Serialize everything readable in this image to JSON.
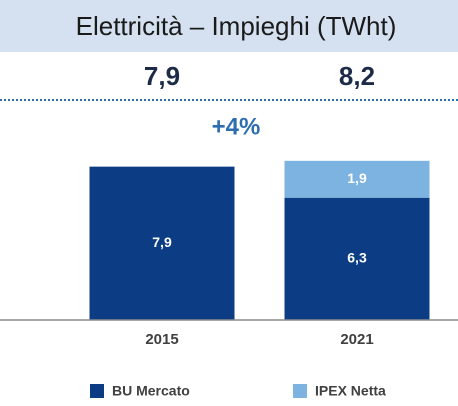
{
  "chart_data": {
    "type": "stacked_bar",
    "title": "Elettricità – Impieghi (TWht)",
    "annotation": "+4%",
    "categories": [
      "2015",
      "2021"
    ],
    "totals": [
      7.9,
      8.2
    ],
    "total_labels": [
      "7,9",
      "8,2"
    ],
    "series": [
      {
        "name": "BU Mercato",
        "color": "#0c3d84",
        "values": [
          7.9,
          6.3
        ],
        "value_labels": [
          "7,9",
          "6,3"
        ]
      },
      {
        "name": "IPEX Netta",
        "color": "#7db3e1",
        "values": [
          null,
          1.9
        ],
        "value_labels": [
          null,
          "1,9"
        ]
      }
    ],
    "ylim": [
      0,
      8.5
    ],
    "legend": "bottom"
  }
}
